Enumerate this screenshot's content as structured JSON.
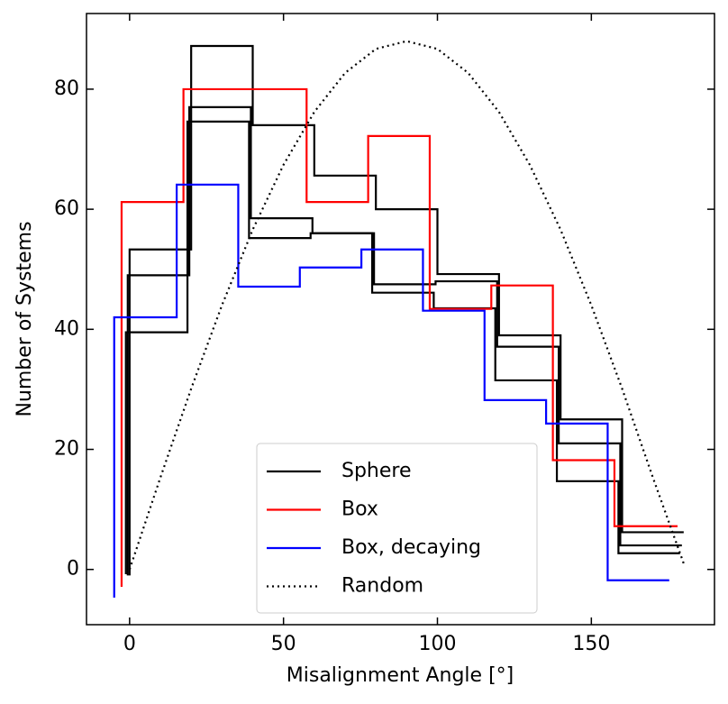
{
  "chart_data": {
    "type": "line",
    "drawstyle": "steps-post",
    "xlabel": "Misalignment Angle [°]",
    "ylabel": "Number of Systems",
    "xlim": [
      -14,
      190
    ],
    "ylim": [
      -9.2,
      92.6
    ],
    "xticks": [
      0,
      50,
      100,
      150
    ],
    "yticks": [
      0,
      20,
      40,
      60,
      80
    ],
    "legend": "lower center",
    "series": [
      {
        "name": "Sphere",
        "color": "#000000",
        "style": "solid",
        "x": [
          0,
          0,
          20,
          40,
          60,
          80,
          100,
          120,
          140,
          160,
          180
        ],
        "values": [
          -1,
          53.3,
          87.2,
          74,
          65.6,
          60,
          49.2,
          39,
          25,
          6.2,
          6.2
        ]
      },
      {
        "color": "#000000",
        "style": "solid",
        "x": [
          -0.6,
          -0.6,
          19.4,
          39.4,
          59.4,
          79.4,
          99.4,
          119.4,
          139.4,
          159.4,
          179.4
        ],
        "values": [
          -1,
          49,
          77,
          58.5,
          56,
          47.5,
          48,
          37.1,
          21,
          4,
          4
        ]
      },
      {
        "color": "#000000",
        "style": "solid",
        "x": [
          -1.2,
          -1.2,
          18.8,
          38.8,
          58.8,
          78.8,
          98.8,
          118.8,
          138.8,
          158.8,
          178.8
        ],
        "values": [
          -0.8,
          39.5,
          74.6,
          55.2,
          56,
          46.1,
          43.5,
          31.5,
          14.7,
          2.7,
          2.7
        ]
      },
      {
        "name": "Box",
        "color": "#ff0000",
        "style": "solid",
        "x": [
          -2.6,
          -2.6,
          17.5,
          57.5,
          77.5,
          97.5,
          117.5,
          137.5,
          157.5,
          178
        ],
        "values": [
          -2.9,
          61.2,
          80,
          61.2,
          72.2,
          43.4,
          47.3,
          18.2,
          7.2,
          7.2
        ]
      },
      {
        "name": "Box, decaying",
        "color": "#0000ff",
        "style": "solid",
        "x": [
          -5,
          -5,
          15.3,
          35.3,
          55.3,
          75.3,
          95.3,
          115.3,
          135.3,
          155.3,
          175.3
        ],
        "values": [
          -4.7,
          42,
          64.1,
          47.1,
          50.3,
          53.3,
          43.1,
          28.2,
          24.3,
          -1.8,
          -1.8
        ]
      },
      {
        "name": "Random",
        "color": "#000000",
        "style": "dotted",
        "drawstyle": "default",
        "x": [
          0,
          10,
          20,
          30,
          40,
          50,
          60,
          70,
          80,
          90,
          100,
          110,
          120,
          130,
          140,
          150,
          160,
          170,
          180
        ],
        "values": [
          0,
          15.3,
          30.1,
          44,
          56.6,
          67.4,
          76.2,
          82.7,
          86.7,
          88,
          86.7,
          82.7,
          76.2,
          67.4,
          56.6,
          44,
          30.1,
          15.3,
          1
        ]
      }
    ]
  }
}
